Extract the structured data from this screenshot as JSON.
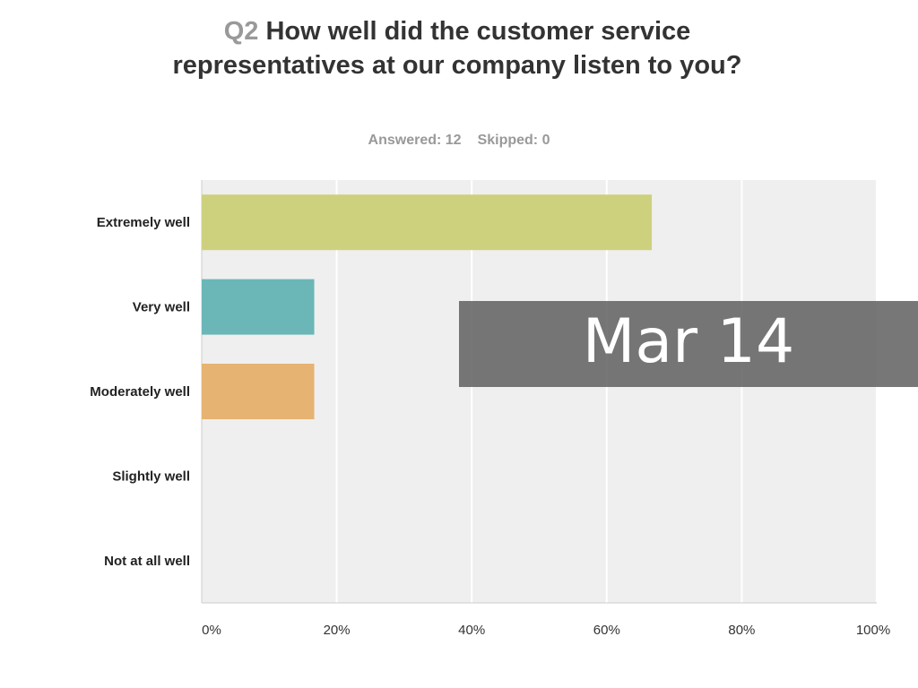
{
  "question": {
    "number": "Q2",
    "text": "How well did the customer service representatives at our company listen to you?"
  },
  "stats": {
    "answered": "Answered: 12",
    "skipped": "Skipped: 0"
  },
  "overlay": {
    "text": "Mar 14"
  },
  "chart_data": {
    "type": "bar",
    "orientation": "horizontal",
    "title": "Q2 How well did the customer service representatives at our company listen to you?",
    "categories": [
      "Extremely well",
      "Very well",
      "Moderately well",
      "Slightly well",
      "Not at all well"
    ],
    "values": [
      66.67,
      16.67,
      16.67,
      0,
      0
    ],
    "colors": [
      "#cdd17e",
      "#6bb7b8",
      "#e6b372",
      "#a8b8d8",
      "#d8a0a0"
    ],
    "xlim": [
      0,
      100
    ],
    "xticks": [
      "0%",
      "20%",
      "40%",
      "60%",
      "80%",
      "100%"
    ],
    "grid": true,
    "background": "#efefef"
  }
}
